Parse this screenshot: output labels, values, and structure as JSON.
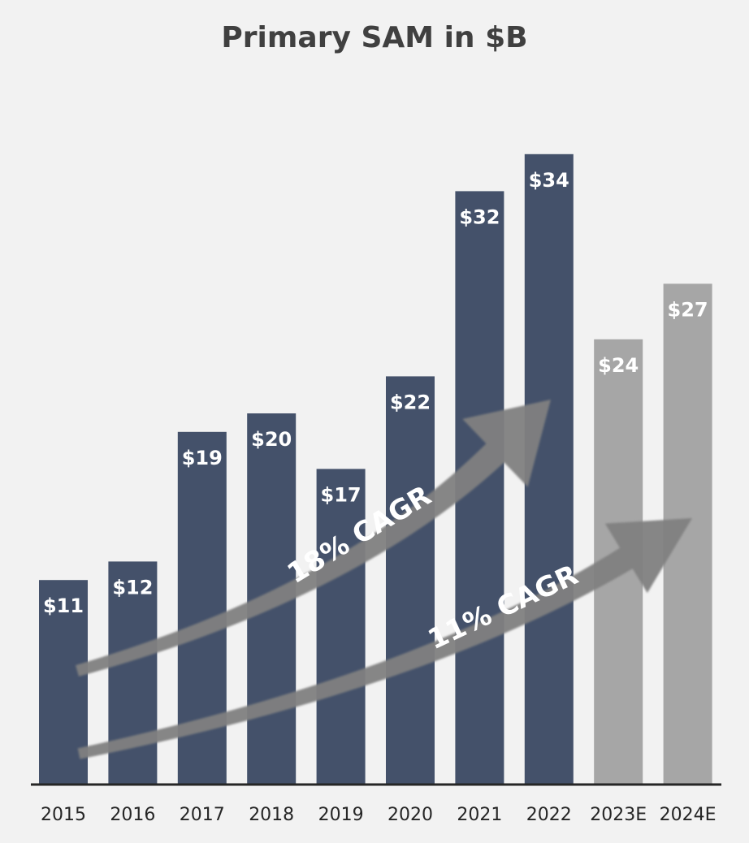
{
  "chart_data": {
    "type": "bar",
    "title": "Primary SAM in $B",
    "categories": [
      "2015",
      "2016",
      "2017",
      "2018",
      "2019",
      "2020",
      "2021",
      "2022",
      "2023E",
      "2024E"
    ],
    "values": [
      11,
      12,
      19,
      20,
      17,
      22,
      32,
      34,
      24,
      27
    ],
    "data_labels": [
      "$11",
      "$12",
      "$19",
      "$20",
      "$17",
      "$22",
      "$32",
      "$34",
      "$24",
      "$27"
    ],
    "estimated": [
      false,
      false,
      false,
      false,
      false,
      false,
      false,
      false,
      true,
      true
    ],
    "ylim": [
      0,
      37
    ],
    "xlabel": "",
    "ylabel": "",
    "grid": false,
    "annotations": [
      {
        "text": "18% CAGR",
        "from_category": "2015",
        "to_category": "2022"
      },
      {
        "text": "11% CAGR",
        "from_category": "2015",
        "to_category": "2024E"
      }
    ]
  },
  "colors": {
    "background": "#f2f2f2",
    "actual_bar": "#44516a",
    "estimate_bar": "#a6a6a6",
    "arrow": "#7f7f7f",
    "axis": "#262626",
    "title": "#404040"
  }
}
